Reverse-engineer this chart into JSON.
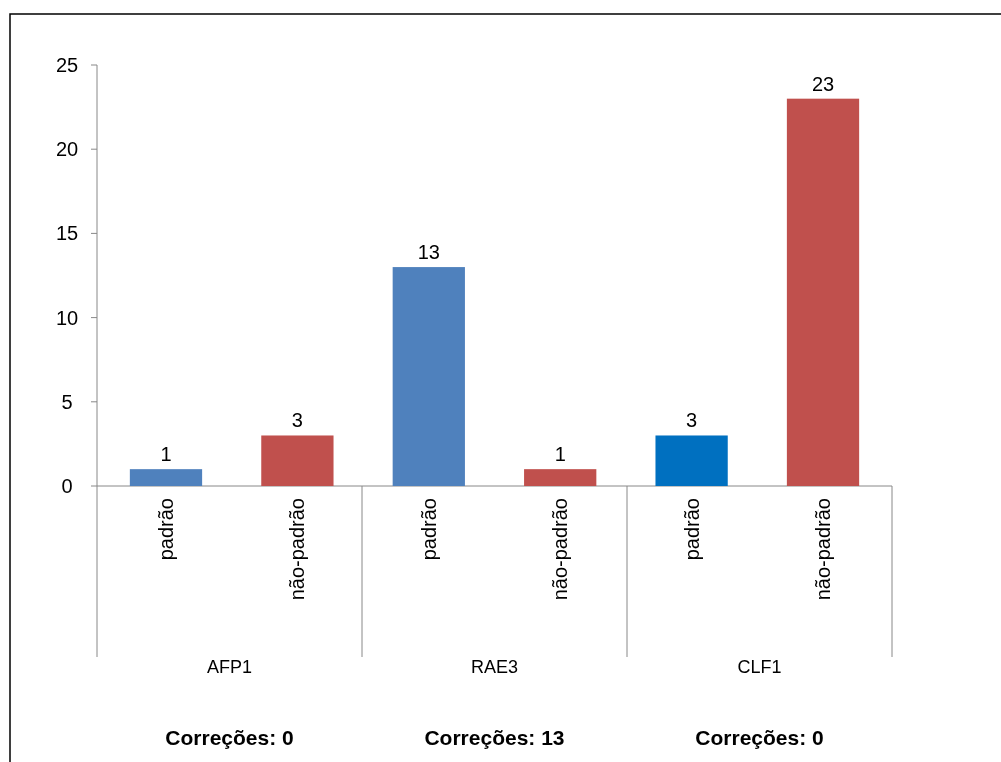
{
  "chart_data": {
    "type": "bar",
    "categories": [
      "padrão",
      "não-padrão",
      "padrão",
      "não-padrão",
      "padrão",
      "não-padrão"
    ],
    "values": [
      1,
      3,
      13,
      1,
      3,
      23
    ],
    "colors": [
      "#4f81bd",
      "#c0504d",
      "#4f81bd",
      "#c0504d",
      "#0070c0",
      "#c0504d"
    ],
    "ylim": [
      0,
      25
    ],
    "yticks": [
      0,
      5,
      10,
      15,
      20,
      25
    ],
    "data_labels": true,
    "annotations": [
      "AFP1",
      "RAE3",
      "CLF1",
      "Correções: 0",
      "Correções: 13",
      "Correções: 0"
    ]
  }
}
